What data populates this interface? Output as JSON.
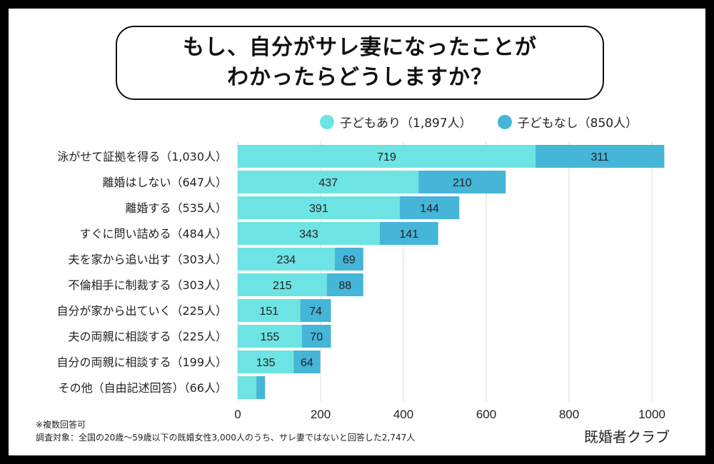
{
  "title": {
    "line1": "もし、自分がサレ妻になったことが",
    "line2": "わかったらどうしますか？"
  },
  "legend": [
    {
      "label": "子どもあり（1,897人）",
      "color": "#6de3e3"
    },
    {
      "label": "子どもなし（850人）",
      "color": "#45b5d8"
    }
  ],
  "notes": {
    "multiple": "※複数回答可",
    "survey": "調査対象：全国の20歳〜59歳以下の既婚女性3,000人のうち、サレ妻ではないと回答した2,747人"
  },
  "brand": "既婚者クラブ",
  "chart_data": {
    "type": "bar",
    "orientation": "horizontal",
    "stacked": true,
    "categories": [
      "泳がせて証拠を得る（1,030人）",
      "離婚はしない（647人）",
      "離婚する（535人）",
      "すぐに問い詰める（484人）",
      "夫を家から追い出す（303人）",
      "不倫相手に制裁する（303人）",
      "自分が家から出ていく（225人）",
      "夫の両親に相談する（225人）",
      "自分の両親に相談する（199人）",
      "その他（自由記述回答）（66人）"
    ],
    "series": [
      {
        "name": "子どもあり（1,897人）",
        "color": "#6de3e3",
        "values": [
          719,
          437,
          391,
          343,
          234,
          215,
          151,
          155,
          135,
          45
        ],
        "labels": [
          "719",
          "437",
          "391",
          "343",
          "234",
          "215",
          "151",
          "155",
          "135",
          ""
        ]
      },
      {
        "name": "子どもなし（850人）",
        "color": "#45b5d8",
        "values": [
          311,
          210,
          144,
          141,
          69,
          88,
          74,
          70,
          64,
          21
        ],
        "labels": [
          "311",
          "210",
          "144",
          "141",
          "69",
          "88",
          "74",
          "70",
          "64",
          ""
        ]
      }
    ],
    "xlim": [
      0,
      1030
    ],
    "xticks": [
      0,
      200,
      400,
      600,
      800,
      1000
    ],
    "grid": true,
    "legend_position": "top-right"
  }
}
